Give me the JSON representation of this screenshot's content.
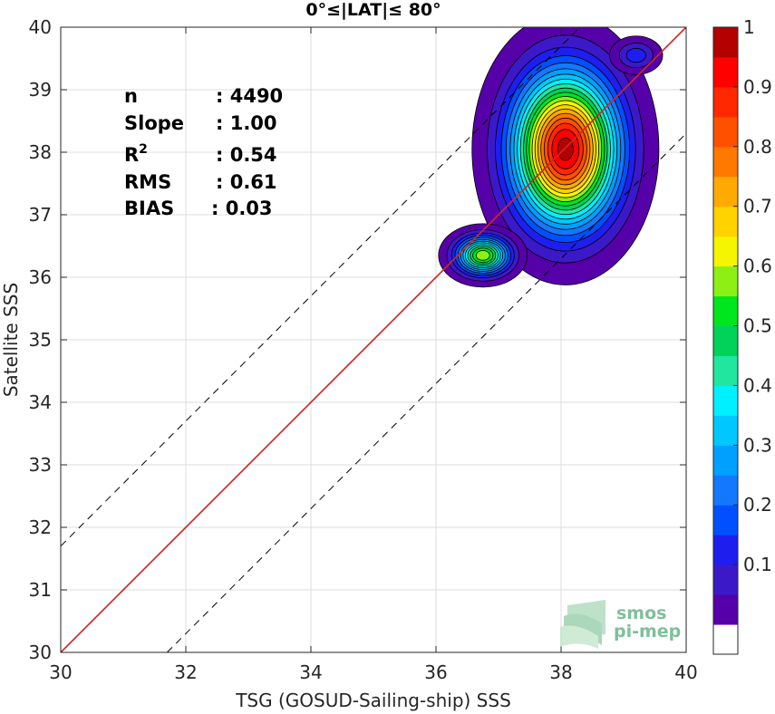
{
  "chart_data": {
    "type": "heatmap",
    "subtype": "normalized density contour scatter",
    "title": "0°≤|LAT|≤ 80°",
    "xlabel": "TSG (GOSUD-Sailing-ship) SSS",
    "ylabel": "Satellite SSS",
    "xlim": [
      30,
      40
    ],
    "ylim": [
      30,
      40
    ],
    "xticks": [
      30,
      32,
      34,
      36,
      38,
      40
    ],
    "yticks": [
      30,
      31,
      32,
      33,
      34,
      35,
      36,
      37,
      38,
      39,
      40
    ],
    "grid": true,
    "stats": {
      "n": "4490",
      "slope": "1.00",
      "r2": "0.54",
      "rms": "0.61",
      "bias": "0.03"
    },
    "stats_labels": {
      "n": "n",
      "slope": "Slope",
      "r2": "R",
      "r2_sup": "2",
      "rms": "RMS",
      "bias": "BIAS"
    },
    "reference_lines": {
      "identity": "y = x",
      "fit": {
        "slope": 1.0,
        "intercept": 0.0,
        "color": "#d62728"
      },
      "bounds_offset": 1.7
    },
    "density_clusters": [
      {
        "cx": 38.07,
        "cy": 38.05,
        "peak": 1.0,
        "sx": 0.55,
        "sy": 0.8
      },
      {
        "cx": 36.75,
        "cy": 36.35,
        "peak": 0.62,
        "sx": 0.28,
        "sy": 0.2
      },
      {
        "cx": 39.2,
        "cy": 39.55,
        "peak": 0.16,
        "sx": 0.22,
        "sy": 0.16
      }
    ],
    "colorbar": {
      "range": [
        0,
        1
      ],
      "ticks": [
        "0.1",
        "0.2",
        "0.3",
        "0.4",
        "0.5",
        "0.6",
        "0.7",
        "0.8",
        "0.9",
        "1"
      ],
      "levels": [
        "#ffffff",
        "#5500a8",
        "#3c19c8",
        "#1e1eef",
        "#0050ff",
        "#1478ff",
        "#00a0ff",
        "#00c8ff",
        "#00f0ff",
        "#20e6a0",
        "#00d25a",
        "#00e61e",
        "#8cf014",
        "#f5f500",
        "#ffd200",
        "#ffaa00",
        "#ff7800",
        "#ff5000",
        "#ff2800",
        "#ff0000",
        "#b40000"
      ]
    }
  },
  "watermark": {
    "line1": "smos",
    "line2": "pi-mep",
    "color": "#7fbf9a"
  }
}
